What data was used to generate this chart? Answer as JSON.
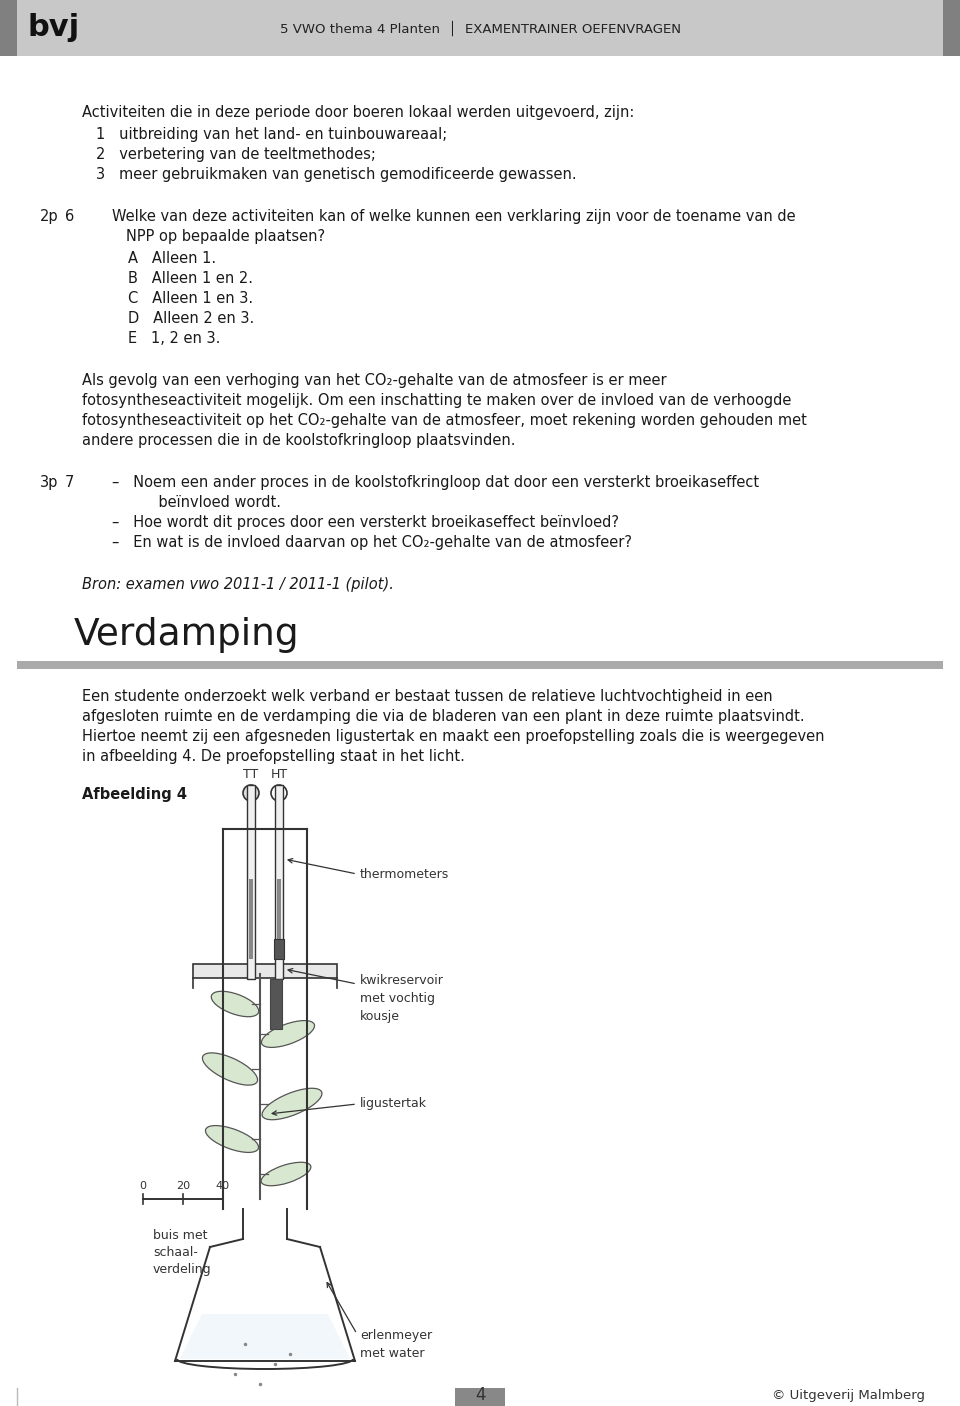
{
  "bg_color": "#ffffff",
  "header_bg": "#c8c8c8",
  "header_bar_color": "#808080",
  "header_title_left": "bvj",
  "header_title_center": "5 VWO thema 4 Planten",
  "header_title_right": "EXAMENTRAINER OEFENVRAGEN",
  "footer_page": "4",
  "footer_right": "© Uitgeverij Malmberg",
  "text_color": "#1a1a1a",
  "intro_text": "Activiteiten die in deze periode door boeren lokaal werden uitgevoerd, zijn:",
  "items": [
    "1   uitbreiding van het land- en tuinbouwareaal;",
    "2   verbetering van de teeltmethodes;",
    "3   meer gebruikmaken van genetisch gemodificeerde gewassen."
  ],
  "q6_label_pts": "2p",
  "q6_label_num": "6",
  "q6_line1": "Welke van deze activiteiten kan of welke kunnen een verklaring zijn voor de toename van de",
  "q6_line2": "NPP op bepaalde plaatsen?",
  "q6_options": [
    "A   Alleen 1.",
    "B   Alleen 1 en 2.",
    "C   Alleen 1 en 3.",
    "D   Alleen 2 en 3.",
    "E   1, 2 en 3."
  ],
  "exp_lines": [
    "Als gevolg van een verhoging van het CO₂-gehalte van de atmosfeer is er meer",
    "fotosyntheseactiviteit mogelijk. Om een inschatting te maken over de invloed van de verhoogde",
    "fotosyntheseactiviteit op het CO₂-gehalte van de atmosfeer, moet rekening worden gehouden met",
    "andere processen die in de koolstofkringloop plaatsvinden."
  ],
  "q7_label_pts": "3p",
  "q7_label_num": "7",
  "q7_lines": [
    "–   Noem een ander proces in de koolstofkringloop dat door een versterkt broeikaseffect",
    "       beïnvloed wordt.",
    "–   Hoe wordt dit proces door een versterkt broeikaseffect beïnvloed?",
    "–   En wat is de invloed daarvan op het CO₂-gehalte van de atmosfeer?"
  ],
  "bron": "Bron: examen vwo 2011-1 / 2011-1 (pilot).",
  "section_title": "Verdamping",
  "section_rule_color": "#a0a0a0",
  "section_intro_lines": [
    "Een studente onderzoekt welk verband er bestaat tussen de relatieve luchtvochtigheid in een",
    "afgesloten ruimte en de verdamping die via de bladeren van een plant in deze ruimte plaatsvindt.",
    "Hiertoe neemt zij een afgesneden ligustertak en maakt een proefopstelling zoals die is weergegeven",
    "in afbeelding 4. De proefopstelling staat in het licht."
  ],
  "afbeelding_label": "Afbeelding 4",
  "diag_TT": "TT",
  "diag_HT": "HT",
  "diag_thermometers": "thermometers",
  "diag_kwikreservoir": "kwikreservoir\nmet vochtig\nkousje",
  "diag_ligustertak": "ligustertak",
  "diag_buis": "buis met\nschaal-\nverdeling",
  "diag_erlenmeyer": "erlenmeyer\nmet water",
  "diag_scale": [
    "0",
    "20",
    "40"
  ],
  "draw_color": "#333333"
}
